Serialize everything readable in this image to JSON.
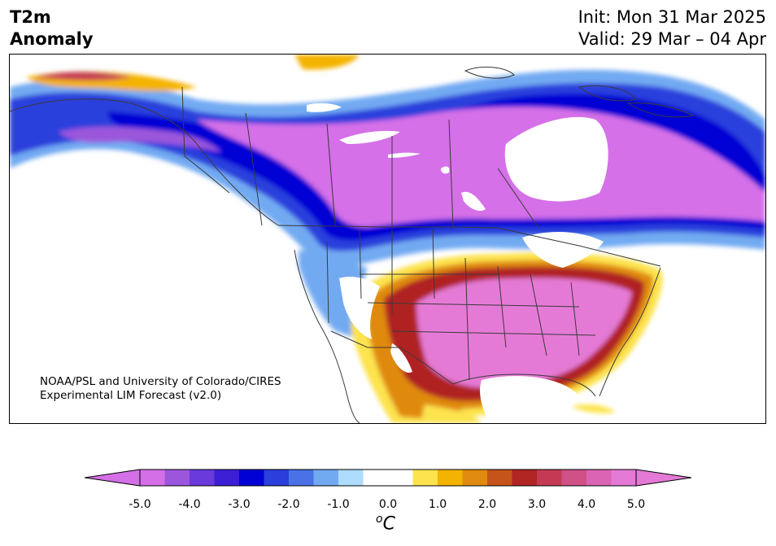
{
  "title": {
    "line1": "T2m",
    "line2": "Anomaly"
  },
  "timing": {
    "init": "Init: Mon 31 Mar 2025",
    "valid": "Valid: 29 Mar – 04 Apr"
  },
  "credit": {
    "line1": "NOAA/PSL and University of Colorado/CIRES",
    "line2": "Experimental LIM Forecast (v2.0)"
  },
  "colorbar": {
    "ticks": [
      "-5.0",
      "-4.0",
      "-3.0",
      "-2.0",
      "-1.0",
      "0.0",
      "1.0",
      "2.0",
      "3.0",
      "4.0",
      "5.0"
    ],
    "unit_base": "C",
    "unit_sup": "o",
    "colors": [
      "#d56fe8",
      "#9b56dc",
      "#6a3adc",
      "#3c1ed4",
      "#0000d4",
      "#2b3fdc",
      "#4a72e6",
      "#72aaf2",
      "#addcfc",
      "#ffffff",
      "#ffffff",
      "#fde34e",
      "#f4b300",
      "#e08a10",
      "#c5541a",
      "#b02424",
      "#c43a54",
      "#d05088",
      "#db64b4",
      "#e57ad6"
    ]
  },
  "map_colors": {
    "strong_cold": "#d56fe8",
    "cold4": "#9b56dc",
    "cold3": "#3c1ed4",
    "cold2": "#0000d4",
    "cold1": "#4a72e6",
    "cool": "#72aaf2",
    "light_cool": "#addcfc",
    "neutral": "#ffffff",
    "warm1": "#fde34e",
    "warm2": "#f4b300",
    "warm3": "#e08a10",
    "warm4": "#c5541a",
    "hot": "#b02424",
    "hot2": "#c43a54",
    "strong_hot": "#e57ad6",
    "border": "#3a3a3a"
  }
}
